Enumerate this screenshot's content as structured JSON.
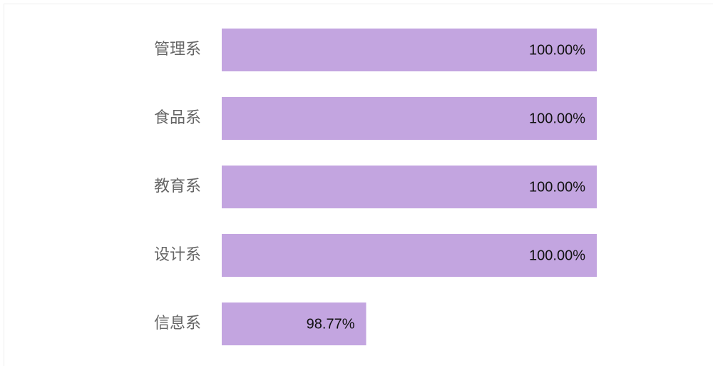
{
  "chart_data": {
    "type": "bar",
    "orientation": "horizontal",
    "categories": [
      "管理系",
      "食品系",
      "教育系",
      "设计系",
      "信息系"
    ],
    "values": [
      100,
      100,
      100,
      100,
      98.77
    ],
    "value_labels": [
      "100.00%",
      "100.00%",
      "100.00%",
      "100.00%",
      "98.77%"
    ],
    "color": "#c3a5e0",
    "xlim": [
      98,
      100
    ]
  }
}
